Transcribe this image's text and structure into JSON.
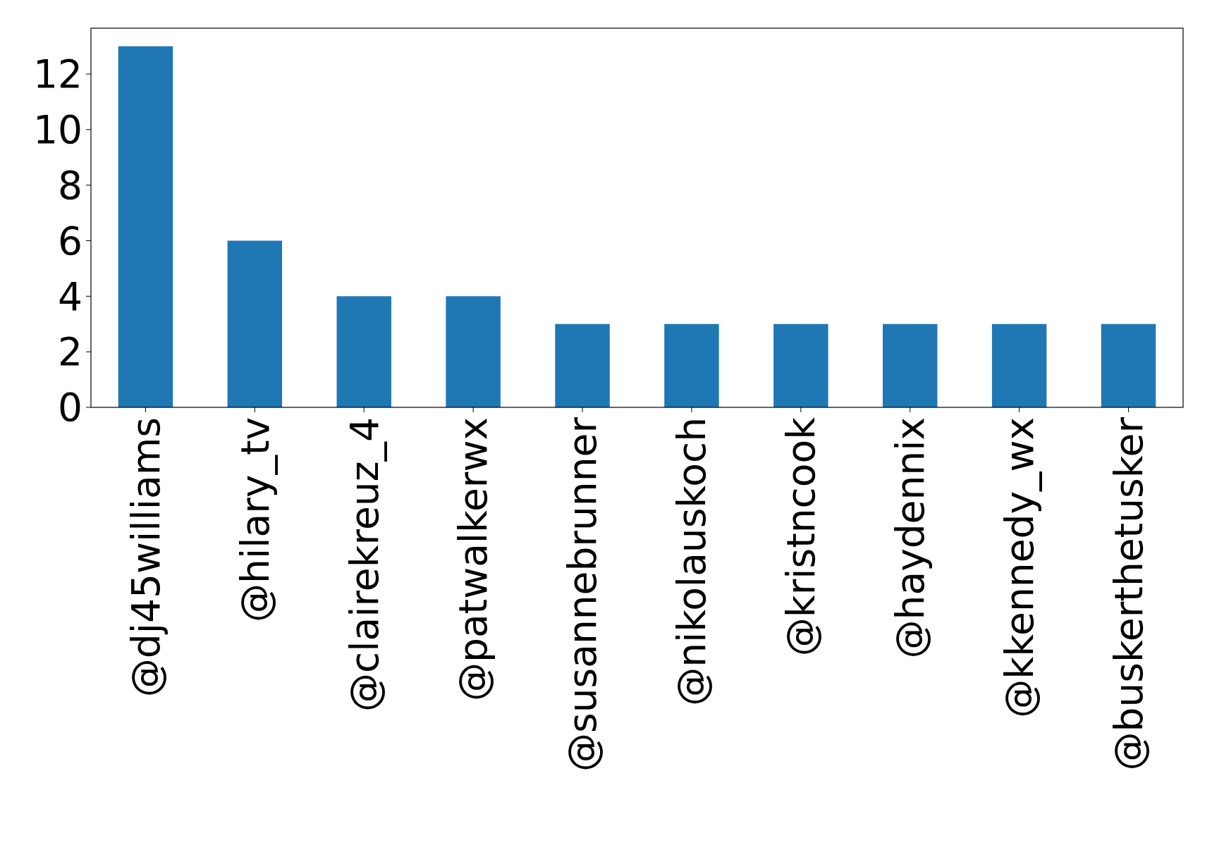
{
  "chart_data": {
    "type": "bar",
    "categories": [
      "@dj45williams",
      "@hilary_tv",
      "@clairekreuz_4",
      "@patwalkerwx",
      "@susannebrunner",
      "@nikolauskoch",
      "@kristncook",
      "@haydennix",
      "@kkennedy_wx",
      "@buskerthetusker"
    ],
    "values": [
      13,
      6,
      4,
      4,
      3,
      3,
      3,
      3,
      3,
      3
    ],
    "color": "#1f77b4",
    "ylim": [
      0,
      13.65
    ],
    "yticks": [
      0,
      2,
      4,
      6,
      8,
      10,
      12
    ],
    "grid": false
  }
}
